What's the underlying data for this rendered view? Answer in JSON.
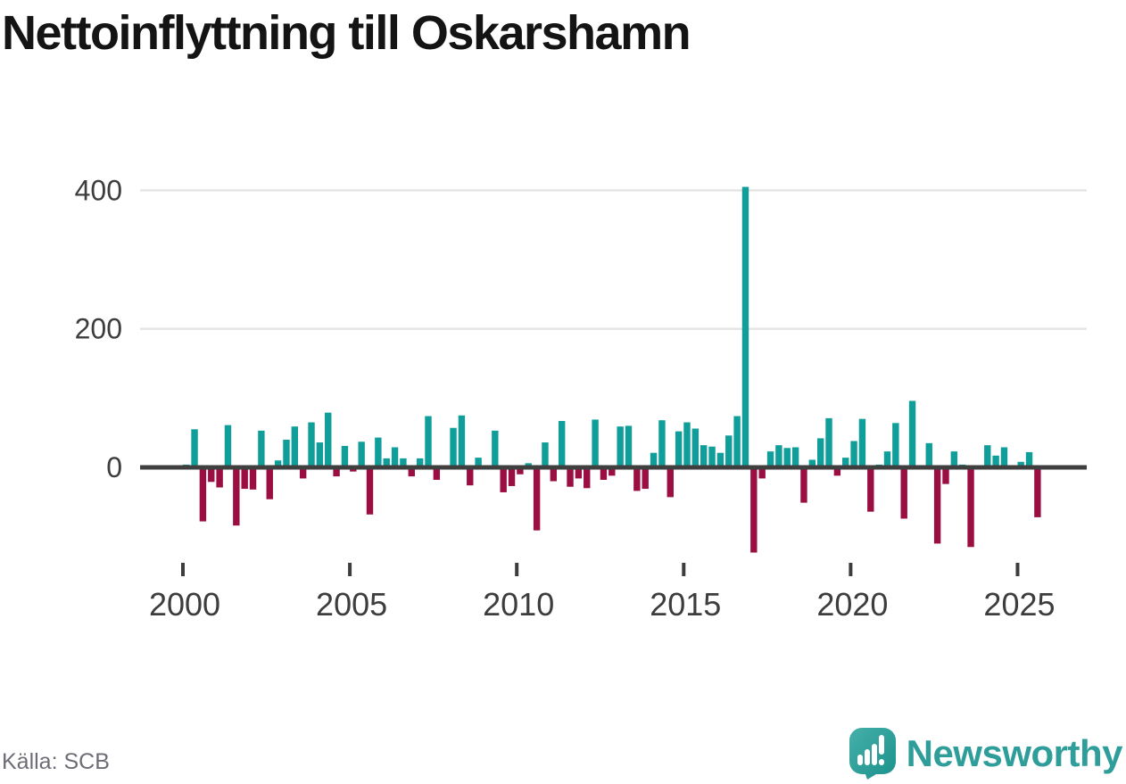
{
  "title": "Nettoinflyttning till Oskarshamn",
  "source": "Källa: SCB",
  "branding": {
    "logo_text": "Newsworthy",
    "logo_icon": "bar-chart-speech-bubble-icon",
    "logo_color": "#2f9e9a",
    "logo_icon_color_top": "#45b0a9",
    "logo_icon_color_bottom": "#1b918b"
  },
  "chart_data": {
    "type": "bar",
    "title": "Nettoinflyttning till Oskarshamn",
    "xlabel": "",
    "ylabel": "",
    "frequency": "quarterly",
    "start_year": 2000,
    "start_quarter": 1,
    "x_ticks": [
      2000,
      2005,
      2010,
      2015,
      2020,
      2025
    ],
    "x_tick_labels": [
      "2000",
      "2005",
      "2010",
      "2015",
      "2020",
      "2025"
    ],
    "y_ticks": [
      0,
      200,
      400
    ],
    "y_tick_labels": [
      "0",
      "200",
      "400"
    ],
    "ylim": [
      -140,
      430
    ],
    "grid": "horizontal",
    "legend": "none",
    "colors": {
      "positive": "#0f9e99",
      "negative": "#9a0e42",
      "axis": "#3f3f3f",
      "gridline": "#e4e4e4",
      "tick_label": "#3d3d3d"
    },
    "series": [
      {
        "name": "Nettoinflyttning",
        "values": [
          4,
          55,
          -78,
          -21,
          -29,
          61,
          -84,
          -31,
          -32,
          53,
          -46,
          10,
          40,
          59,
          -16,
          65,
          36,
          79,
          -13,
          31,
          -6,
          37,
          -68,
          43,
          13,
          29,
          13,
          -13,
          13,
          74,
          -18,
          0,
          57,
          75,
          -26,
          14,
          0,
          53,
          -36,
          -27,
          -10,
          6,
          -91,
          36,
          -20,
          67,
          -28,
          -16,
          -30,
          69,
          -18,
          -12,
          59,
          60,
          -34,
          -31,
          21,
          68,
          -43,
          52,
          65,
          56,
          32,
          30,
          21,
          46,
          74,
          405,
          -123,
          -16,
          23,
          32,
          28,
          29,
          -51,
          11,
          42,
          71,
          -12,
          14,
          38,
          70,
          -64,
          4,
          23,
          64,
          -74,
          96,
          0,
          35,
          -110,
          -24,
          23,
          4,
          -115,
          0,
          32,
          17,
          29,
          0,
          8,
          22,
          -72
        ]
      }
    ]
  }
}
